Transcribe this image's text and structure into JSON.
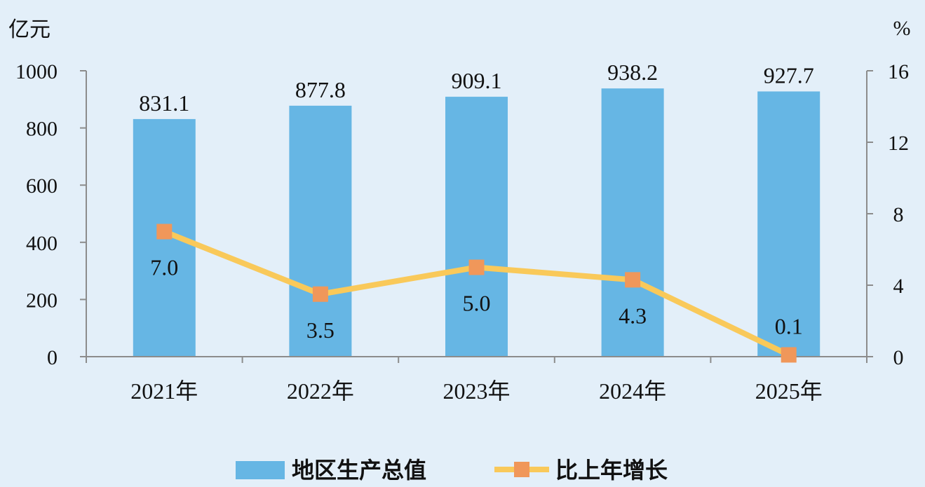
{
  "chart_data": {
    "type": "bar",
    "categories": [
      "2021年",
      "2022年",
      "2023年",
      "2024年",
      "2025年"
    ],
    "series": [
      {
        "name": "地区生产总值",
        "type": "bar",
        "axis": "left",
        "values": [
          831.1,
          877.8,
          909.1,
          938.2,
          927.7
        ],
        "color": "#66b6e4"
      },
      {
        "name": "比上年增长",
        "type": "line",
        "axis": "right",
        "values": [
          7.0,
          3.5,
          5.0,
          4.3,
          0.1
        ],
        "color": "#f9c95a",
        "marker_color": "#f0975a"
      }
    ],
    "bar_labels": [
      "831.1",
      "877.8",
      "909.1",
      "938.2",
      "927.7"
    ],
    "line_labels": [
      "7.0",
      "3.5",
      "5.0",
      "4.3",
      "0.1"
    ],
    "left_axis": {
      "unit": "亿元",
      "ylim": [
        0,
        1000
      ],
      "ticks": [
        "0",
        "200",
        "400",
        "600",
        "800",
        "1000"
      ]
    },
    "right_axis": {
      "unit": "%",
      "ylim": [
        0,
        16
      ],
      "ticks": [
        "0",
        "4",
        "8",
        "12",
        "16"
      ]
    },
    "legend": {
      "position": "bottom",
      "items": [
        "地区生产总值",
        "比上年增长"
      ]
    },
    "grid": false,
    "background": "#e3eff9",
    "axis_color": "#8c8c8c"
  }
}
